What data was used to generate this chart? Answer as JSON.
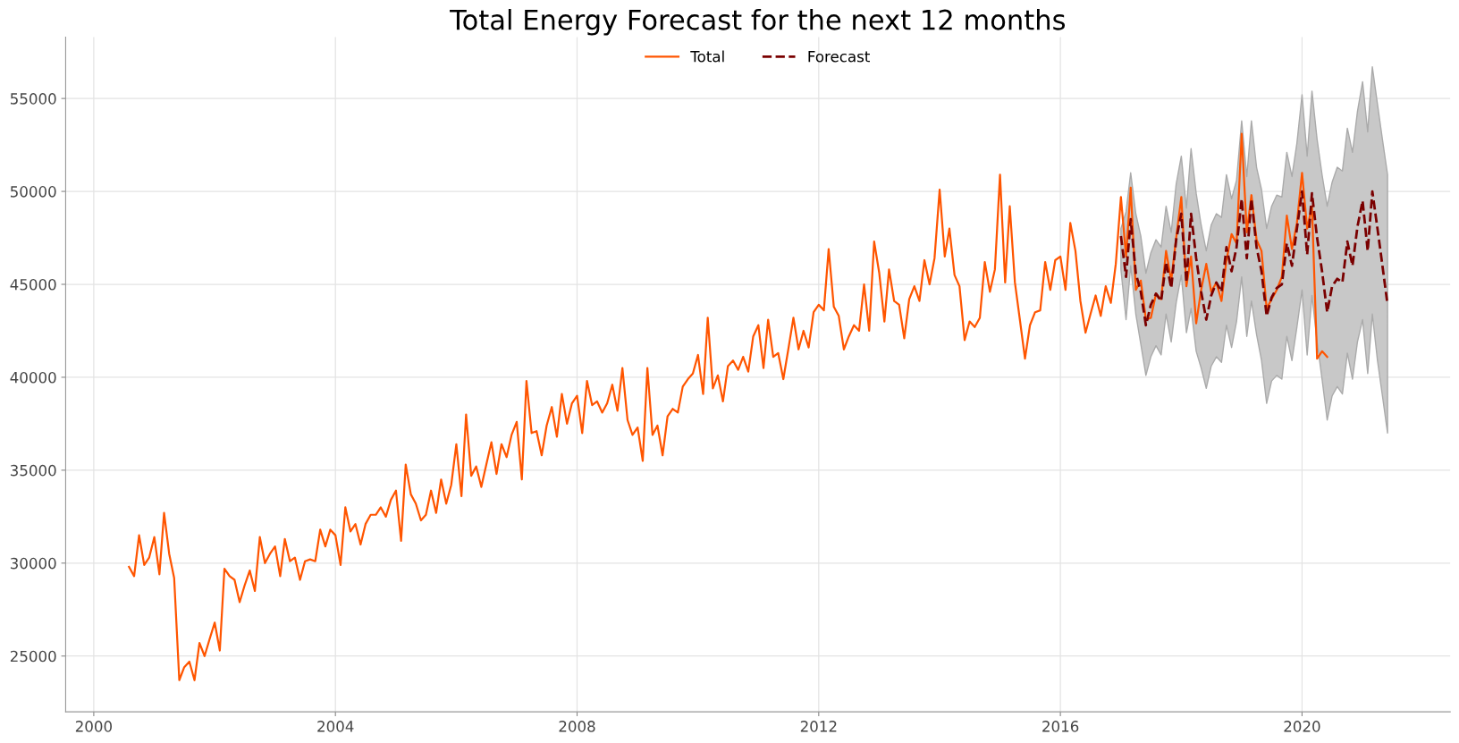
{
  "chart_data": {
    "type": "line",
    "title": "Total Energy Forecast for the next 12 months",
    "xlim": [
      "1999-07-15",
      "2022-06-15"
    ],
    "xticks": [
      "2000",
      "2004",
      "2008",
      "2012",
      "2016",
      "2020"
    ],
    "ylim": [
      22000,
      58300
    ],
    "yticks": [
      25000,
      30000,
      35000,
      40000,
      45000,
      50000,
      55000
    ],
    "grid": true,
    "legend": "top",
    "series": [
      {
        "name": "Total",
        "color": "#ff5500",
        "line_style": "solid",
        "x": [
          "2000-08",
          "2000-09",
          "2000-10",
          "2000-11",
          "2000-12",
          "2001-01",
          "2001-02",
          "2001-03",
          "2001-04",
          "2001-05",
          "2001-06",
          "2001-07",
          "2001-08",
          "2001-09",
          "2001-10",
          "2001-11",
          "2001-12",
          "2002-01",
          "2002-02",
          "2002-03",
          "2002-04",
          "2002-05",
          "2002-06",
          "2002-07",
          "2002-08",
          "2002-09",
          "2002-10",
          "2002-11",
          "2002-12",
          "2003-01",
          "2003-02",
          "2003-03",
          "2003-04",
          "2003-05",
          "2003-06",
          "2003-07",
          "2003-08",
          "2003-09",
          "2003-10",
          "2003-11",
          "2003-12",
          "2004-01",
          "2004-02",
          "2004-03",
          "2004-04",
          "2004-05",
          "2004-06",
          "2004-07",
          "2004-08",
          "2004-09",
          "2004-10",
          "2004-11",
          "2004-12",
          "2005-01",
          "2005-02",
          "2005-03",
          "2005-04",
          "2005-05",
          "2005-06",
          "2005-07",
          "2005-08",
          "2005-09",
          "2005-10",
          "2005-11",
          "2005-12",
          "2006-01",
          "2006-02",
          "2006-03",
          "2006-04",
          "2006-05",
          "2006-06",
          "2006-07",
          "2006-08",
          "2006-09",
          "2006-10",
          "2006-11",
          "2006-12",
          "2007-01",
          "2007-02",
          "2007-03",
          "2007-04",
          "2007-05",
          "2007-06",
          "2007-07",
          "2007-08",
          "2007-09",
          "2007-10",
          "2007-11",
          "2007-12",
          "2008-01",
          "2008-02",
          "2008-03",
          "2008-04",
          "2008-05",
          "2008-06",
          "2008-07",
          "2008-08",
          "2008-09",
          "2008-10",
          "2008-11",
          "2008-12",
          "2009-01",
          "2009-02",
          "2009-03",
          "2009-04",
          "2009-05",
          "2009-06",
          "2009-07",
          "2009-08",
          "2009-09",
          "2009-10",
          "2009-11",
          "2009-12",
          "2010-01",
          "2010-02",
          "2010-03",
          "2010-04",
          "2010-05",
          "2010-06",
          "2010-07",
          "2010-08",
          "2010-09",
          "2010-10",
          "2010-11",
          "2010-12",
          "2011-01",
          "2011-02",
          "2011-03",
          "2011-04",
          "2011-05",
          "2011-06",
          "2011-07",
          "2011-08",
          "2011-09",
          "2011-10",
          "2011-11",
          "2011-12",
          "2012-01",
          "2012-02",
          "2012-03",
          "2012-04",
          "2012-05",
          "2012-06",
          "2012-07",
          "2012-08",
          "2012-09",
          "2012-10",
          "2012-11",
          "2012-12",
          "2013-01",
          "2013-02",
          "2013-03",
          "2013-04",
          "2013-05",
          "2013-06",
          "2013-07",
          "2013-08",
          "2013-09",
          "2013-10",
          "2013-11",
          "2013-12",
          "2014-01",
          "2014-02",
          "2014-03",
          "2014-04",
          "2014-05",
          "2014-06",
          "2014-07",
          "2014-08",
          "2014-09",
          "2014-10",
          "2014-11",
          "2014-12",
          "2015-01",
          "2015-02",
          "2015-03",
          "2015-04",
          "2015-05",
          "2015-06",
          "2015-07",
          "2015-08",
          "2015-09",
          "2015-10",
          "2015-11",
          "2015-12",
          "2016-01",
          "2016-02",
          "2016-03",
          "2016-04",
          "2016-05",
          "2016-06",
          "2016-07",
          "2016-08",
          "2016-09",
          "2016-10",
          "2016-11",
          "2016-12",
          "2017-01",
          "2017-02",
          "2017-03",
          "2017-04",
          "2017-05",
          "2017-06",
          "2017-07",
          "2017-08",
          "2017-09",
          "2017-10",
          "2017-11",
          "2017-12",
          "2018-01",
          "2018-02",
          "2018-03",
          "2018-04",
          "2018-05",
          "2018-06",
          "2018-07",
          "2018-08",
          "2018-09",
          "2018-10",
          "2018-11",
          "2018-12",
          "2019-01",
          "2019-02",
          "2019-03",
          "2019-04",
          "2019-05",
          "2019-06",
          "2019-07",
          "2019-08",
          "2019-09",
          "2019-10",
          "2019-11",
          "2019-12",
          "2020-01",
          "2020-02",
          "2020-03",
          "2020-04",
          "2020-05",
          "2020-06"
        ],
        "values": [
          29800,
          29300,
          31500,
          29900,
          30300,
          31400,
          29400,
          32700,
          30500,
          29200,
          23700,
          24400,
          24700,
          23700,
          25700,
          25000,
          25900,
          26800,
          25300,
          29700,
          29300,
          29100,
          27900,
          28800,
          29600,
          28500,
          31400,
          30000,
          30500,
          30900,
          29300,
          31300,
          30100,
          30300,
          29100,
          30100,
          30200,
          30100,
          31800,
          30900,
          31800,
          31500,
          29900,
          33000,
          31700,
          32100,
          31000,
          32100,
          32600,
          32600,
          33000,
          32500,
          33400,
          33900,
          31200,
          35300,
          33700,
          33200,
          32300,
          32600,
          33900,
          32700,
          34500,
          33200,
          34200,
          36400,
          33600,
          38000,
          34700,
          35200,
          34100,
          35300,
          36500,
          34800,
          36400,
          35700,
          36900,
          37600,
          34500,
          39800,
          37000,
          37100,
          35800,
          37400,
          38400,
          36800,
          39100,
          37500,
          38600,
          39000,
          37000,
          39800,
          38500,
          38700,
          38100,
          38600,
          39600,
          38200,
          40500,
          37700,
          36900,
          37300,
          35500,
          40500,
          36900,
          37400,
          35800,
          37900,
          38300,
          38100,
          39500,
          39900,
          40200,
          41200,
          39100,
          43200,
          39400,
          40100,
          38700,
          40600,
          40900,
          40400,
          41100,
          40300,
          42200,
          42800,
          40500,
          43100,
          41100,
          41300,
          39900,
          41500,
          43200,
          41500,
          42500,
          41600,
          43500,
          43900,
          43600,
          46900,
          43800,
          43300,
          41500,
          42200,
          42800,
          42500,
          45000,
          42500,
          47300,
          45600,
          43000,
          45800,
          44100,
          43900,
          42100,
          44200,
          44900,
          44100,
          46300,
          45000,
          46400,
          50100,
          46500,
          48000,
          45500,
          44900,
          42000,
          43000,
          42700,
          43200,
          46200,
          44600,
          45800,
          50900,
          45100,
          49200,
          45100,
          43100,
          41000,
          42800,
          43500,
          43600,
          46200,
          44700,
          46300,
          46500,
          44700,
          48300,
          46800,
          44100,
          42400,
          43400,
          44400,
          43300,
          44900,
          44000,
          46100,
          49700,
          46500,
          50200,
          44700,
          45200,
          43100,
          43200,
          44500,
          44200,
          46800,
          45200,
          47500,
          49700,
          44900,
          46500,
          42900,
          44700,
          46100,
          44600,
          45100,
          44100,
          46300,
          47700,
          47200,
          53100,
          47800,
          49800,
          47400,
          46800,
          43700,
          44200,
          44700,
          45400,
          48700,
          46900,
          48300,
          51000,
          48000,
          49200,
          41000,
          41400,
          41100
        ]
      },
      {
        "name": "Forecast",
        "color": "#7a0000",
        "line_style": "dashed",
        "x": [
          "2017-01",
          "2017-02",
          "2017-03",
          "2017-04",
          "2017-05",
          "2017-06",
          "2017-07",
          "2017-08",
          "2017-09",
          "2017-10",
          "2017-11",
          "2017-12",
          "2018-01",
          "2018-02",
          "2018-03",
          "2018-04",
          "2018-05",
          "2018-06",
          "2018-07",
          "2018-08",
          "2018-09",
          "2018-10",
          "2018-11",
          "2018-12",
          "2019-01",
          "2019-02",
          "2019-03",
          "2019-04",
          "2019-05",
          "2019-06",
          "2019-07",
          "2019-08",
          "2019-09",
          "2019-10",
          "2019-11",
          "2019-12",
          "2020-01",
          "2020-02",
          "2020-03",
          "2020-04",
          "2020-05",
          "2020-06",
          "2020-07",
          "2020-08",
          "2020-09",
          "2020-10",
          "2020-11",
          "2020-12",
          "2021-01",
          "2021-02",
          "2021-03",
          "2021-04",
          "2021-05",
          "2021-06"
        ],
        "values": [
          47600,
          45400,
          48500,
          45600,
          44600,
          42800,
          43900,
          44500,
          44100,
          46200,
          44800,
          47400,
          48800,
          45100,
          48800,
          46400,
          44600,
          43100,
          44400,
          45100,
          44600,
          47000,
          45700,
          47000,
          49600,
          46400,
          49600,
          47000,
          45700,
          43300,
          44300,
          44800,
          45000,
          47200,
          46000,
          48000,
          50000,
          46600,
          49900,
          47500,
          45700,
          43500,
          44900,
          45300,
          45100,
          47300,
          46000,
          48100,
          49500,
          46800,
          50000,
          48000,
          46000,
          43900
        ],
        "upper": [
          48000,
          48900,
          51000,
          48800,
          47600,
          45600,
          46700,
          47400,
          47000,
          49200,
          47800,
          50400,
          51900,
          49100,
          52300,
          49900,
          48200,
          46800,
          48200,
          48800,
          48600,
          50900,
          49600,
          50600,
          53800,
          50800,
          53800,
          51300,
          50100,
          48000,
          49200,
          49800,
          49700,
          52100,
          50800,
          52600,
          55200,
          51900,
          55400,
          52800,
          50900,
          49200,
          50500,
          51300,
          51100,
          53400,
          52100,
          54300,
          55900,
          53200,
          56700,
          54700,
          52800,
          50900
        ],
        "lower": [
          45800,
          43100,
          46000,
          43400,
          41800,
          40100,
          41100,
          41700,
          41200,
          43400,
          41900,
          44000,
          45500,
          42400,
          43700,
          41400,
          40500,
          39400,
          40600,
          41100,
          40800,
          42800,
          41600,
          43000,
          45400,
          42200,
          44100,
          42300,
          40900,
          38600,
          39800,
          40100,
          39900,
          42200,
          40900,
          42700,
          44700,
          41200,
          44400,
          41900,
          39900,
          37700,
          39000,
          39500,
          39100,
          41300,
          39900,
          41900,
          43100,
          40200,
          43400,
          40900,
          39000,
          37000
        ]
      }
    ]
  }
}
